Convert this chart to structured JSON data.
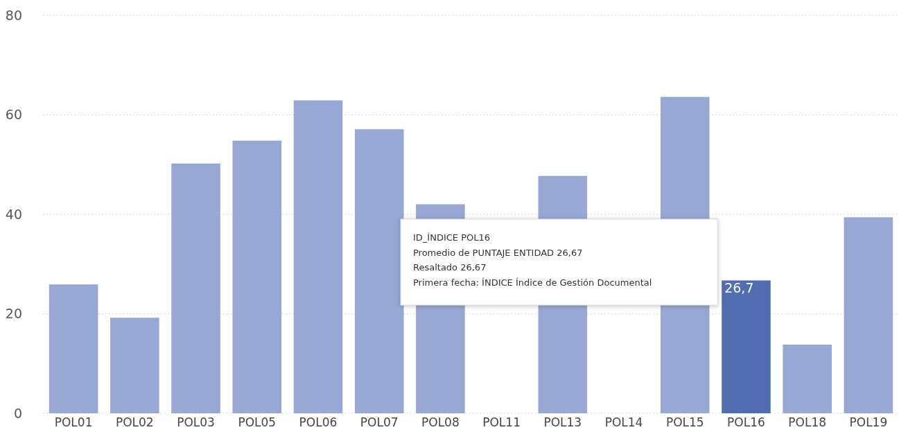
{
  "chart_data": {
    "type": "bar",
    "categories": [
      "POL01",
      "POL02",
      "POL03",
      "POL05",
      "POL06",
      "POL07",
      "POL08",
      "POL11",
      "POL13",
      "POL14",
      "POL15",
      "POL16",
      "POL18",
      "POL19"
    ],
    "values": [
      25.9,
      19.2,
      50.2,
      54.8,
      62.9,
      57.1,
      42.0,
      null,
      47.7,
      null,
      63.6,
      26.7,
      13.8,
      39.4
    ],
    "colors": [
      "#97a8d4",
      "#97a8d4",
      "#97a8d4",
      "#97a8d4",
      "#97a8d4",
      "#97a8d4",
      "#97a8d4",
      null,
      "#97a8d4",
      null,
      "#97a8d4",
      "#4f6daf",
      "#97a8d4",
      "#97a8d4"
    ],
    "value_labels": [
      null,
      null,
      null,
      null,
      null,
      null,
      null,
      null,
      null,
      null,
      null,
      "26,7",
      null,
      null
    ],
    "ylim": [
      0,
      80
    ],
    "yticks": [
      0,
      20,
      40,
      60,
      80
    ],
    "grid": "y",
    "annotations": [
      "ID_ÍNDICE  POL16",
      "Promedio de PUNTAJE ENTIDAD  26,67",
      "Resaltado  26,67",
      "Primera fecha: ÍNDICE  Índice de Gestión Documental"
    ]
  }
}
